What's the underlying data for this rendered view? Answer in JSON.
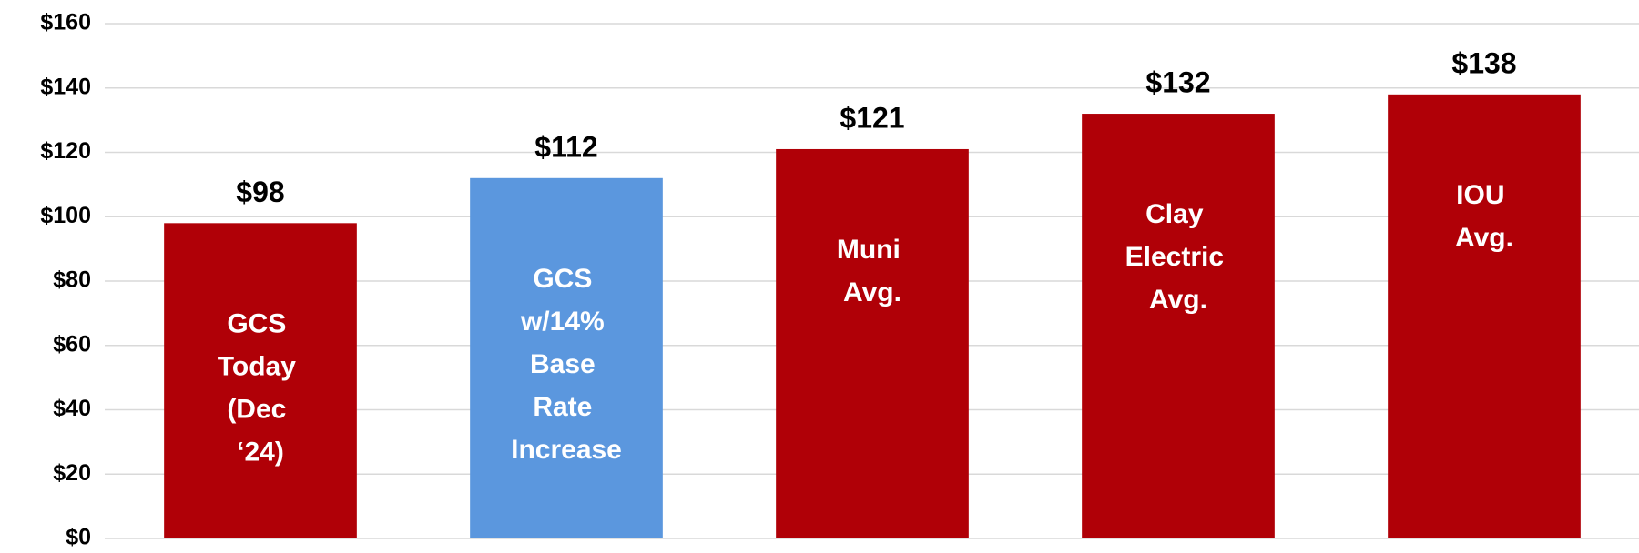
{
  "chart_data": {
    "type": "bar",
    "categories": [
      "GCS Today (Dec ‘24)",
      "GCS w/14% Base Rate Increase",
      "Muni Avg.",
      "Clay Electric Avg.",
      "IOU Avg."
    ],
    "values": [
      98,
      112,
      121,
      132,
      138
    ],
    "value_labels": [
      "$98",
      "$112",
      "$121",
      "$132",
      "$138"
    ],
    "colors": [
      "#b00007",
      "#5b97de",
      "#b00007",
      "#b00007",
      "#b00007"
    ],
    "ylim": [
      0,
      160
    ],
    "yticks": [
      {
        "value": 0,
        "label": "$0"
      },
      {
        "value": 20,
        "label": "$20"
      },
      {
        "value": 40,
        "label": "$40"
      },
      {
        "value": 60,
        "label": "$60"
      },
      {
        "value": 80,
        "label": "$80"
      },
      {
        "value": 100,
        "label": "$100"
      },
      {
        "value": 120,
        "label": "$120"
      },
      {
        "value": 140,
        "label": "$140"
      },
      {
        "value": 160,
        "label": "$160"
      }
    ],
    "grid": true
  }
}
